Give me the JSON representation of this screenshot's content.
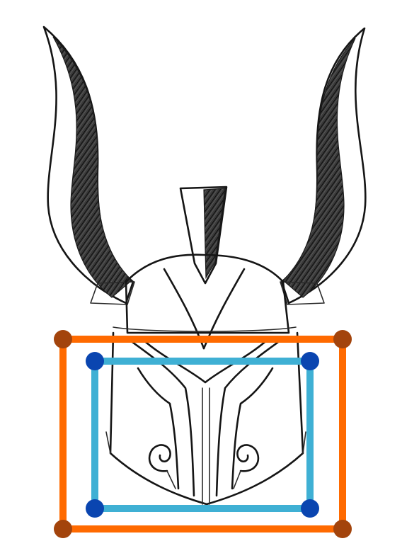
{
  "image": {
    "subject": "helmet-sketch",
    "colors": {
      "background": "#ffffff",
      "ink": "#151515",
      "pencil_shade": "#2b2b2b",
      "outer_box_line": "#ff6a00",
      "outer_box_corner": "#a3440c",
      "inner_box_line": "#3fb0d4",
      "inner_box_corner": "#0a45b0"
    }
  }
}
